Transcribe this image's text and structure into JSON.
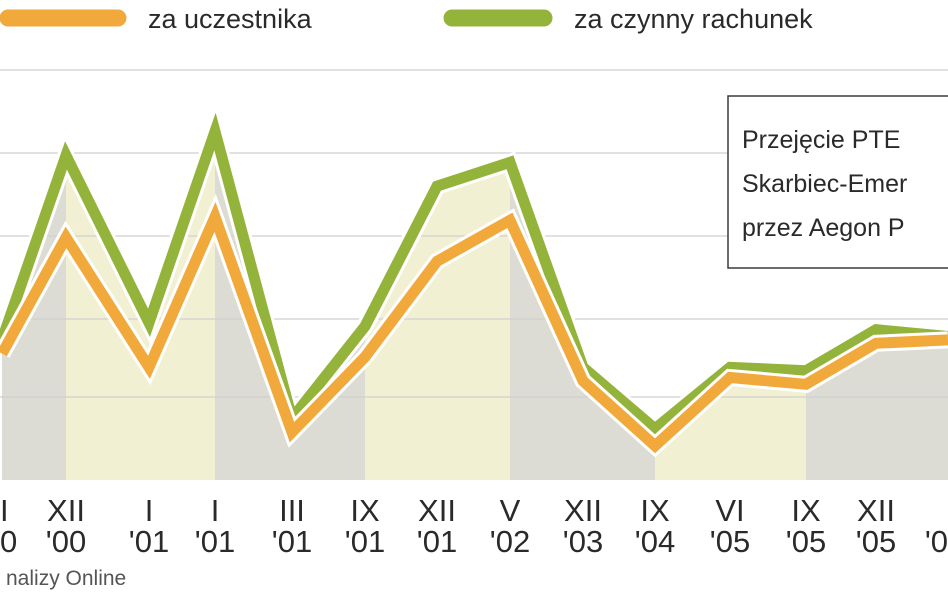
{
  "chart_data": {
    "type": "line",
    "title": "",
    "xlabel": "",
    "ylabel": "",
    "categories": [
      {
        "top": "I",
        "bottom": "0"
      },
      {
        "top": "XII",
        "bottom": "'00"
      },
      {
        "top": "I",
        "bottom": "'01"
      },
      {
        "top": "I",
        "bottom": "'01"
      },
      {
        "top": "III",
        "bottom": "'01"
      },
      {
        "top": "IX",
        "bottom": "'01"
      },
      {
        "top": "XII",
        "bottom": "'01"
      },
      {
        "top": "V",
        "bottom": "'02"
      },
      {
        "top": "XII",
        "bottom": "'03"
      },
      {
        "top": "IX",
        "bottom": "'04"
      },
      {
        "top": "VI",
        "bottom": "'05"
      },
      {
        "top": "IX",
        "bottom": "'05"
      },
      {
        "top": "XII",
        "bottom": "'05"
      },
      {
        "top": "",
        "bottom": "'0"
      }
    ],
    "series": [
      {
        "name": "za uczestnika",
        "color": "#f2a93b",
        "values": [
          3.7,
          7.1,
          3.3,
          7.7,
          1.4,
          3.6,
          6.4,
          7.6,
          2.9,
          1.0,
          3.0,
          2.8,
          4.0,
          4.1
        ]
      },
      {
        "name": "za czynny rachunek",
        "color": "#94b33a",
        "values": [
          4.1,
          9.5,
          4.6,
          10.2,
          1.8,
          4.5,
          8.6,
          9.3,
          3.3,
          1.5,
          3.3,
          3.2,
          4.4,
          4.2
        ]
      }
    ],
    "ylim": [
      0,
      12
    ],
    "grid": true,
    "legend_position": "top",
    "shaded_bands": [
      {
        "from_index": 0,
        "to_index": 1,
        "color": "#dcdcd4"
      },
      {
        "from_index": 1,
        "to_index": 3,
        "color": "#f2f0d2"
      },
      {
        "from_index": 3,
        "to_index": 5,
        "color": "#dcdcd4"
      },
      {
        "from_index": 5,
        "to_index": 7,
        "color": "#f2f0d2"
      },
      {
        "from_index": 7,
        "to_index": 9,
        "color": "#dcdcd4"
      },
      {
        "from_index": 9,
        "to_index": 11,
        "color": "#f2f0d2"
      },
      {
        "from_index": 11,
        "to_index": 13,
        "color": "#dcdcd4"
      }
    ],
    "annotation": [
      "Przejęcie PTE",
      "Skarbiec-Emer",
      "przez Aegon P"
    ],
    "source": "naliz​y Online"
  },
  "colors": {
    "grid": "#cfcfcf",
    "text": "#2a2a2a",
    "band_dark": "#dcdcd4",
    "band_light": "#f2f0d2"
  }
}
